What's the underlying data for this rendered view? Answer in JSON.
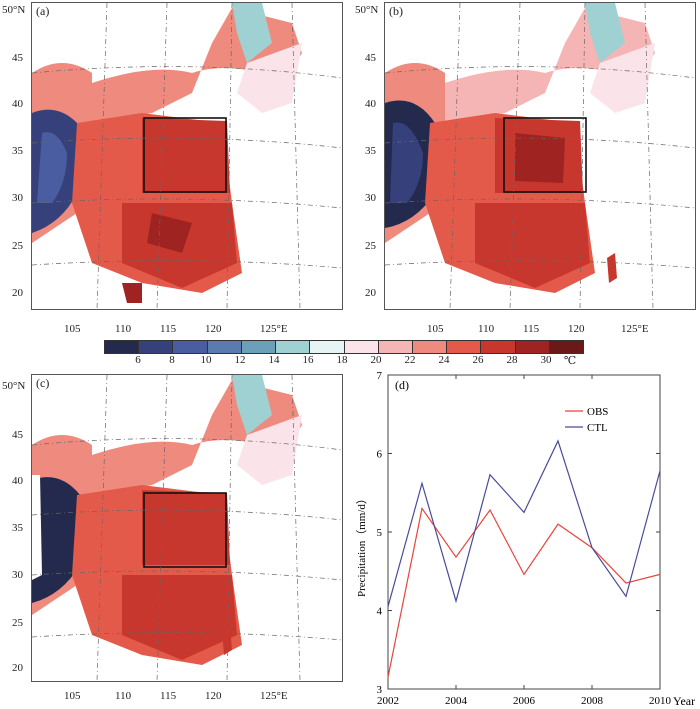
{
  "panels": {
    "a": {
      "label": "(a)"
    },
    "b": {
      "label": "(b)"
    },
    "c": {
      "label": "(c)"
    }
  },
  "map_axes": {
    "lat_ticks": [
      "50°N",
      "45",
      "40",
      "35",
      "30",
      "25",
      "20"
    ],
    "lon_ticks": [
      "105",
      "110",
      "115",
      "120",
      "125°E"
    ]
  },
  "colorbar": {
    "ticks": [
      "6",
      "8",
      "10",
      "12",
      "14",
      "16",
      "18",
      "20",
      "22",
      "24",
      "26",
      "28",
      "30",
      "℃"
    ],
    "colors": [
      "#232a4d",
      "#36407a",
      "#4a5da0",
      "#5b7ab0",
      "#6c9fb8",
      "#9fd0d2",
      "#e6f4f6",
      "#fbe3ea",
      "#f5b5b4",
      "#ef8a7e",
      "#e45a4a",
      "#c8372e",
      "#9e2321",
      "#6a1818"
    ]
  },
  "chart_data": {
    "type": "line",
    "panel_label": "(d)",
    "title": "",
    "xlabel": "Year",
    "ylabel": "Precipitation（mm/d）",
    "x": [
      2002,
      2003,
      2004,
      2005,
      2006,
      2007,
      2008,
      2009,
      2010
    ],
    "xlim": [
      2002,
      2010
    ],
    "ylim": [
      3,
      7
    ],
    "xticks": [
      2002,
      2004,
      2006,
      2008,
      2010
    ],
    "yticks": [
      3,
      4,
      5,
      6,
      7
    ],
    "series": [
      {
        "name": "OBS",
        "color": "#e8453c",
        "values": [
          3.15,
          5.3,
          4.68,
          5.28,
          4.46,
          5.1,
          4.8,
          4.35,
          4.46
        ]
      },
      {
        "name": "CTL",
        "color": "#4a4c9c",
        "values": [
          4.05,
          5.62,
          4.12,
          5.73,
          5.25,
          6.16,
          4.8,
          4.18,
          5.78
        ]
      }
    ],
    "legend_position": "top-right"
  }
}
